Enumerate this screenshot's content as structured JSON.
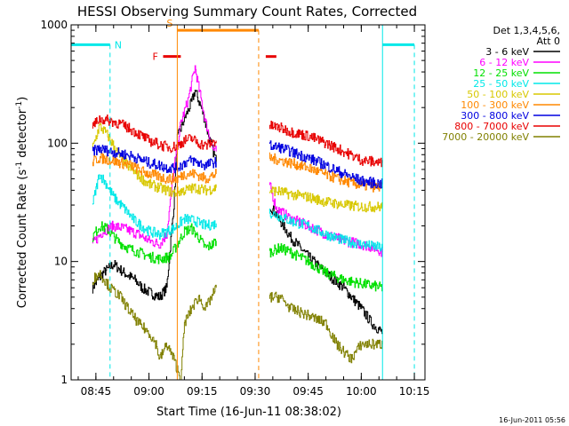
{
  "chart_data": {
    "type": "line",
    "title": "HESSI Observing Summary Count Rates, Corrected",
    "xlabel": "Start Time (16-Jun-11 08:38:02)",
    "ylabel_main": "Corrected Count Rate (s",
    "ylabel_exp1": "-1",
    "ylabel_mid": " detector",
    "ylabel_exp2": "-1",
    "ylabel_end": ")",
    "yscale": "log",
    "ylim": [
      1,
      1000
    ],
    "xlim": [
      "08:38",
      "10:18"
    ],
    "x_ticks": [
      "08:45",
      "09:00",
      "09:15",
      "09:30",
      "09:45",
      "10:00",
      "10:15"
    ],
    "y_ticks": [
      "1",
      "10",
      "100",
      "1000"
    ],
    "detectors_label": "Det 1,3,4,5,6,",
    "attenuator_label": "Att 0",
    "legend": [
      {
        "label": "3 - 6 keV",
        "color": "#000000"
      },
      {
        "label": "6 - 12 keV",
        "color": "#ff00ff"
      },
      {
        "label": "12 - 25 keV",
        "color": "#00e000"
      },
      {
        "label": "25 - 50 keV",
        "color": "#00e8e8"
      },
      {
        "label": "50 - 100 keV",
        "color": "#d8c800"
      },
      {
        "label": "100 - 300 keV",
        "color": "#ff8800"
      },
      {
        "label": "300 - 800 keV",
        "color": "#0000e0"
      },
      {
        "label": "800 - 7000 keV",
        "color": "#e80000"
      },
      {
        "label": "7000 - 20000 keV",
        "color": "#808000"
      }
    ],
    "series": [
      {
        "name": "3 - 6 keV",
        "color": "#000000",
        "segments": [
          [
            [
              "08:44",
              6
            ],
            [
              "08:47",
              8
            ],
            [
              "08:50",
              9.5
            ],
            [
              "08:53",
              8
            ],
            [
              "08:56",
              7
            ],
            [
              "08:58",
              6
            ],
            [
              "09:00",
              5.5
            ],
            [
              "09:03",
              5
            ],
            [
              "09:05",
              6
            ],
            [
              "09:07",
              30
            ],
            [
              "09:08",
              110
            ],
            [
              "09:10",
              160
            ],
            [
              "09:12",
              220
            ],
            [
              "09:13",
              280
            ],
            [
              "09:15",
              190
            ],
            [
              "09:17",
              110
            ],
            [
              "09:19",
              70
            ]
          ],
          [
            [
              "09:34",
              30
            ],
            [
              "09:36",
              25
            ],
            [
              "09:40",
              16
            ],
            [
              "09:45",
              11
            ],
            [
              "09:50",
              8
            ],
            [
              "09:55",
              6
            ],
            [
              "10:00",
              4
            ],
            [
              "10:03",
              3
            ],
            [
              "10:06",
              2.5
            ]
          ]
        ]
      },
      {
        "name": "6 - 12 keV",
        "color": "#ff00ff",
        "segments": [
          [
            [
              "08:44",
              14
            ],
            [
              "08:47",
              18
            ],
            [
              "08:50",
              20
            ],
            [
              "08:53",
              19
            ],
            [
              "08:57",
              17
            ],
            [
              "09:00",
              15
            ],
            [
              "09:03",
              14
            ],
            [
              "09:05",
              17
            ],
            [
              "09:07",
              60
            ],
            [
              "09:09",
              150
            ],
            [
              "09:11",
              230
            ],
            [
              "09:13",
              440
            ],
            [
              "09:14",
              300
            ],
            [
              "09:16",
              150
            ],
            [
              "09:18",
              90
            ],
            [
              "09:19",
              85
            ]
          ],
          [
            [
              "09:34",
              45
            ],
            [
              "09:36",
              28
            ],
            [
              "09:40",
              23
            ],
            [
              "09:45",
              20
            ],
            [
              "09:50",
              17
            ],
            [
              "09:55",
              15
            ],
            [
              "10:00",
              14
            ],
            [
              "10:04",
              13
            ],
            [
              "10:06",
              12
            ]
          ]
        ]
      },
      {
        "name": "12 - 25 keV",
        "color": "#00e000",
        "segments": [
          [
            [
              "08:44",
              16
            ],
            [
              "08:46",
              20
            ],
            [
              "08:48",
              19
            ],
            [
              "08:51",
              15
            ],
            [
              "08:54",
              13
            ],
            [
              "08:57",
              12
            ],
            [
              "09:00",
              11
            ],
            [
              "09:03",
              10.5
            ],
            [
              "09:06",
              11
            ],
            [
              "09:08",
              14
            ],
            [
              "09:10",
              18
            ],
            [
              "09:12",
              19
            ],
            [
              "09:14",
              16
            ],
            [
              "09:16",
              13
            ],
            [
              "09:18",
              14
            ],
            [
              "09:19",
              15
            ]
          ],
          [
            [
              "09:34",
              12
            ],
            [
              "09:37",
              13
            ],
            [
              "09:40",
              12
            ],
            [
              "09:45",
              10
            ],
            [
              "09:50",
              8
            ],
            [
              "09:55",
              7
            ],
            [
              "10:00",
              6.5
            ],
            [
              "10:06",
              6
            ]
          ]
        ]
      },
      {
        "name": "25 - 50 keV",
        "color": "#00e8e8",
        "segments": [
          [
            [
              "08:44",
              30
            ],
            [
              "08:46",
              55
            ],
            [
              "08:48",
              45
            ],
            [
              "08:50",
              35
            ],
            [
              "08:53",
              28
            ],
            [
              "08:56",
              22
            ],
            [
              "09:00",
              18
            ],
            [
              "09:03",
              17
            ],
            [
              "09:05",
              18
            ],
            [
              "09:07",
              19
            ],
            [
              "09:10",
              23
            ],
            [
              "09:13",
              22
            ],
            [
              "09:16",
              20
            ],
            [
              "09:19",
              21
            ]
          ],
          [
            [
              "09:34",
              26
            ],
            [
              "09:37",
              24
            ],
            [
              "09:40",
              22
            ],
            [
              "09:45",
              20
            ],
            [
              "09:50",
              17
            ],
            [
              "09:55",
              15
            ],
            [
              "10:00",
              14
            ],
            [
              "10:06",
              13
            ]
          ]
        ]
      },
      {
        "name": "50 - 100 keV",
        "color": "#d8c800",
        "segments": [
          [
            [
              "08:44",
              90
            ],
            [
              "08:46",
              140
            ],
            [
              "08:48",
              120
            ],
            [
              "08:50",
              95
            ],
            [
              "08:52",
              75
            ],
            [
              "08:55",
              60
            ],
            [
              "08:58",
              50
            ],
            [
              "09:00",
              45
            ],
            [
              "09:03",
              42
            ],
            [
              "09:05",
              40
            ],
            [
              "09:07",
              38
            ],
            [
              "09:10",
              40
            ],
            [
              "09:13",
              42
            ],
            [
              "09:16",
              40
            ],
            [
              "09:19",
              42
            ]
          ],
          [
            [
              "09:34",
              40
            ],
            [
              "09:37",
              39
            ],
            [
              "09:40",
              37
            ],
            [
              "09:45",
              35
            ],
            [
              "09:50",
              32
            ],
            [
              "09:55",
              30
            ],
            [
              "10:00",
              29
            ],
            [
              "10:06",
              29
            ]
          ]
        ]
      },
      {
        "name": "100 - 300 keV",
        "color": "#ff8800",
        "segments": [
          [
            [
              "08:44",
              70
            ],
            [
              "08:46",
              75
            ],
            [
              "08:49",
              72
            ],
            [
              "08:52",
              68
            ],
            [
              "08:55",
              65
            ],
            [
              "08:58",
              58
            ],
            [
              "09:00",
              55
            ],
            [
              "09:03",
              52
            ],
            [
              "09:05",
              50
            ],
            [
              "09:08",
              50
            ],
            [
              "09:10",
              55
            ],
            [
              "09:13",
              55
            ],
            [
              "09:16",
              50
            ],
            [
              "09:19",
              55
            ]
          ],
          [
            [
              "09:34",
              75
            ],
            [
              "09:37",
              72
            ],
            [
              "09:40",
              68
            ],
            [
              "09:45",
              62
            ],
            [
              "09:50",
              54
            ],
            [
              "09:55",
              48
            ],
            [
              "10:00",
              44
            ],
            [
              "10:06",
              42
            ]
          ]
        ]
      },
      {
        "name": "300 - 800 keV",
        "color": "#0000e0",
        "segments": [
          [
            [
              "08:44",
              85
            ],
            [
              "08:46",
              90
            ],
            [
              "08:49",
              85
            ],
            [
              "08:52",
              82
            ],
            [
              "08:55",
              78
            ],
            [
              "08:58",
              72
            ],
            [
              "09:00",
              68
            ],
            [
              "09:03",
              65
            ],
            [
              "09:05",
              62
            ],
            [
              "09:08",
              62
            ],
            [
              "09:10",
              68
            ],
            [
              "09:12",
              72
            ],
            [
              "09:14",
              68
            ],
            [
              "09:16",
              65
            ],
            [
              "09:19",
              70
            ]
          ],
          [
            [
              "09:34",
              95
            ],
            [
              "09:37",
              92
            ],
            [
              "09:40",
              85
            ],
            [
              "09:45",
              75
            ],
            [
              "09:50",
              65
            ],
            [
              "09:55",
              55
            ],
            [
              "10:00",
              48
            ],
            [
              "10:06",
              45
            ]
          ]
        ]
      },
      {
        "name": "800 - 7000 keV",
        "color": "#e80000",
        "segments": [
          [
            [
              "08:44",
              140
            ],
            [
              "08:46",
              160
            ],
            [
              "08:49",
              155
            ],
            [
              "08:52",
              145
            ],
            [
              "08:55",
              130
            ],
            [
              "08:58",
              115
            ],
            [
              "09:00",
              105
            ],
            [
              "09:02",
              100
            ],
            [
              "09:04",
              95
            ],
            [
              "09:06",
              92
            ],
            [
              "09:08",
              95
            ],
            [
              "09:10",
              105
            ],
            [
              "09:12",
              110
            ],
            [
              "09:14",
              100
            ],
            [
              "09:16",
              95
            ],
            [
              "09:19",
              105
            ]
          ],
          [
            [
              "09:34",
              140
            ],
            [
              "09:37",
              135
            ],
            [
              "09:40",
              125
            ],
            [
              "09:45",
              115
            ],
            [
              "09:50",
              100
            ],
            [
              "09:55",
              85
            ],
            [
              "10:00",
              72
            ],
            [
              "10:06",
              68
            ]
          ]
        ]
      },
      {
        "name": "7000 - 20000 keV",
        "color": "#808000",
        "segments": [
          [
            [
              "08:44",
              7
            ],
            [
              "08:46",
              8
            ],
            [
              "08:49",
              6
            ],
            [
              "08:52",
              5
            ],
            [
              "08:54",
              4
            ],
            [
              "08:57",
              3
            ],
            [
              "09:00",
              2.5
            ],
            [
              "09:02",
              2
            ],
            [
              "09:03",
              1.5
            ],
            [
              "09:05",
              2
            ],
            [
              "09:07",
              1.5
            ],
            [
              "09:09",
              1
            ],
            [
              "09:10",
              3
            ],
            [
              "09:12",
              4
            ],
            [
              "09:14",
              5
            ],
            [
              "09:16",
              4
            ],
            [
              "09:19",
              6
            ]
          ],
          [
            [
              "09:34",
              5
            ],
            [
              "09:37",
              5
            ],
            [
              "09:40",
              4
            ],
            [
              "09:45",
              3.5
            ],
            [
              "09:50",
              3
            ],
            [
              "09:53",
              2
            ],
            [
              "09:57",
              1.5
            ],
            [
              "10:00",
              2
            ],
            [
              "10:04",
              2
            ],
            [
              "10:06",
              2
            ]
          ]
        ]
      }
    ],
    "gaps": [
      [
        "09:19",
        "09:34"
      ],
      [
        "10:06",
        "10:15"
      ]
    ],
    "bars": [
      {
        "label": "N",
        "color": "#00e8e8",
        "from": "08:38",
        "to": "08:49",
        "level": 680,
        "dashed_at": "08:49"
      },
      {
        "label": "",
        "color": "#00e8e8",
        "from": "10:06",
        "to": "10:15",
        "level": 680,
        "dashed_at": "10:15"
      },
      {
        "label": "S",
        "color": "#ff8800",
        "from": "09:08",
        "to": "09:31",
        "level": 900,
        "dashed_at": "09:31"
      },
      {
        "label": "F",
        "color": "#e80000",
        "from": "09:04",
        "to": "09:09",
        "level": 540
      },
      {
        "label": "",
        "color": "#e80000",
        "from": "09:33",
        "to": "09:36",
        "level": 540
      }
    ]
  },
  "timestamp": "16-Jun-2011 05:56"
}
